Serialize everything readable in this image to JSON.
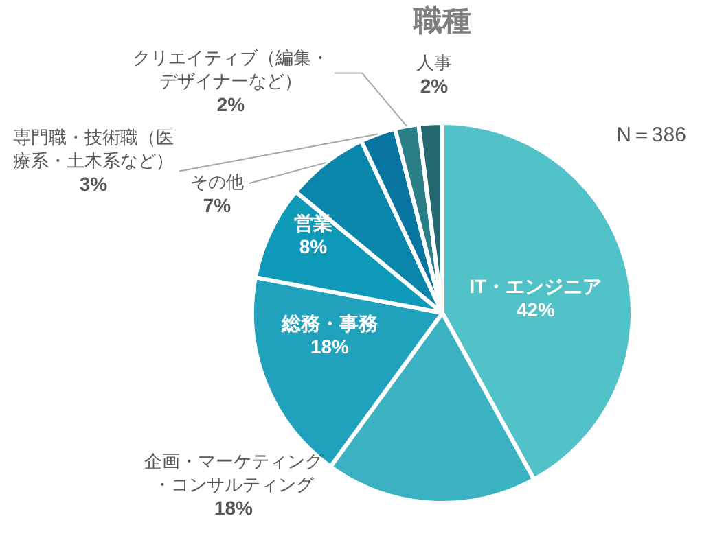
{
  "chart_data": {
    "type": "pie",
    "title": "職種",
    "categories": [
      "IT・エンジニア",
      "企画・マーケティング・コンサルティング",
      "総務・事務",
      "営業",
      "その他",
      "専門職・技術職（医療系・土木系など）",
      "クリエイティブ（編集・デザイナーなど）",
      "人事"
    ],
    "values": [
      42,
      18,
      18,
      8,
      7,
      3,
      2,
      2
    ],
    "colors": [
      "#52c2c9",
      "#3ab2c2",
      "#20a2bd",
      "#0e99b8",
      "#0a86ab",
      "#0874a0",
      "#2a7f86",
      "#25686f"
    ],
    "annotations": [
      "N＝386"
    ],
    "value_labels": [
      "42%",
      "18%",
      "18%",
      "8%",
      "7%",
      "3%",
      "2%",
      "2%"
    ],
    "legend": false
  }
}
